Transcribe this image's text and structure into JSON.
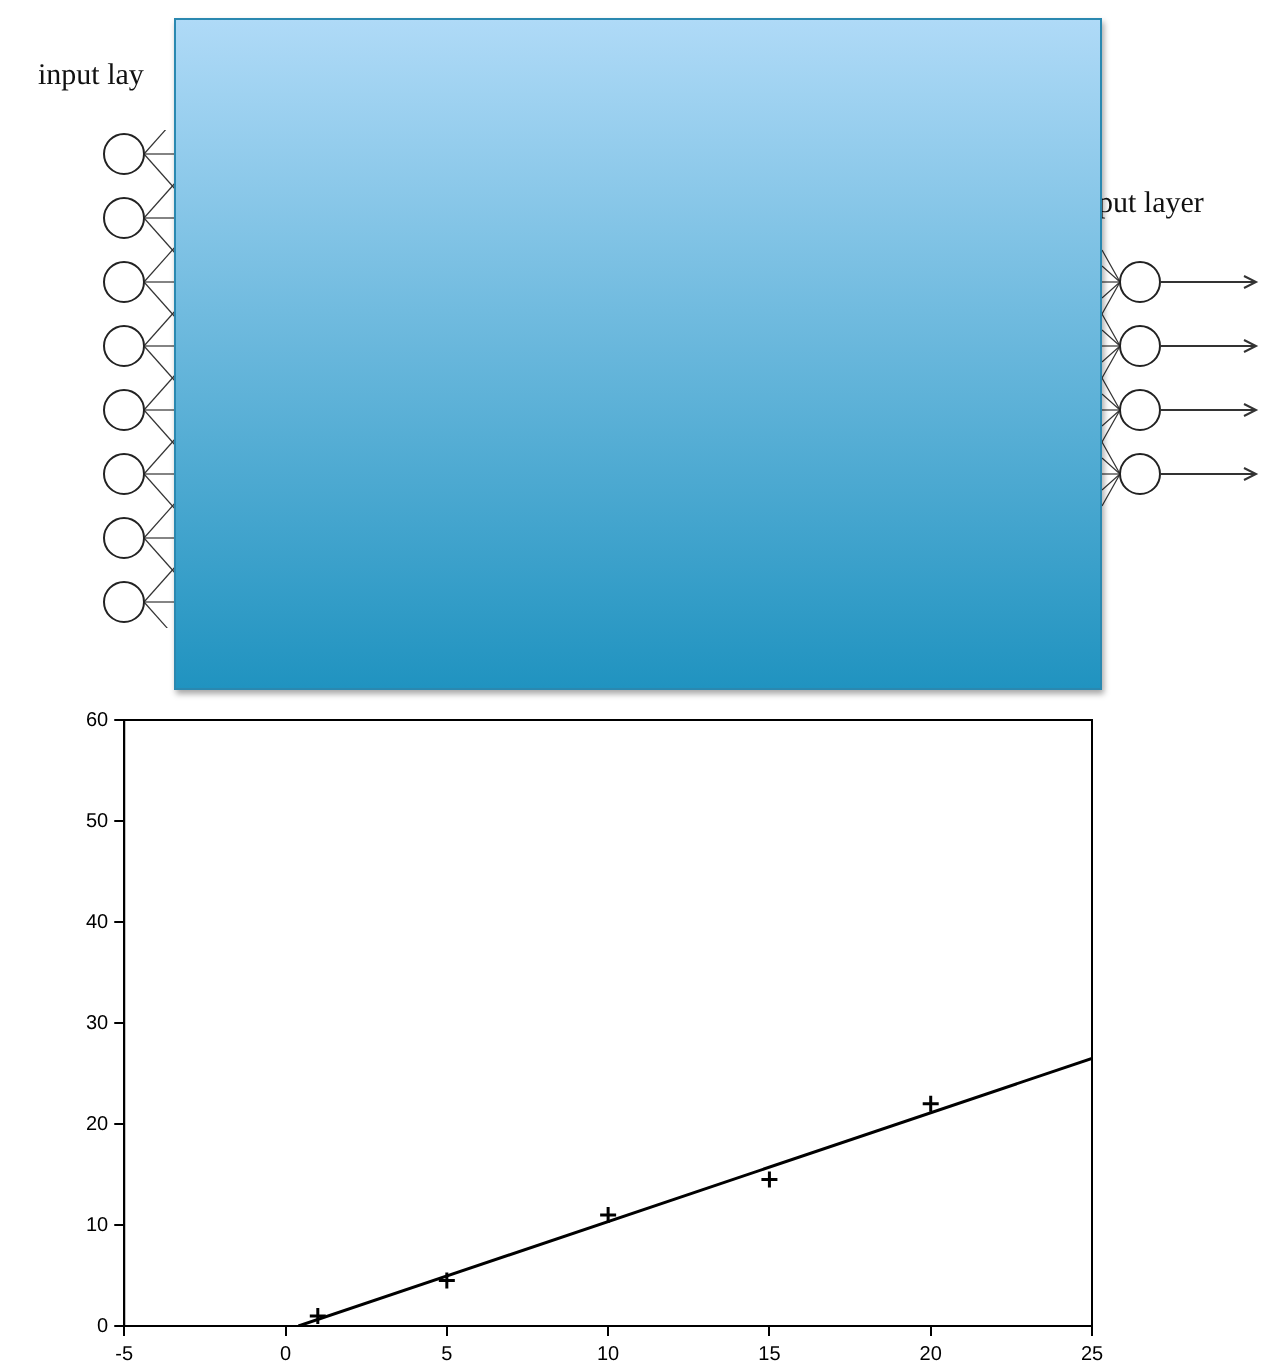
{
  "chart_data": {
    "type": "scatter",
    "series": [
      {
        "color": "#000000",
        "marker": "cross",
        "x": [
          1,
          5,
          10,
          15,
          20
        ],
        "values": [
          1,
          4.5,
          11,
          14.5,
          22
        ]
      },
      {
        "type": "line",
        "color": "#000000",
        "marker": "none",
        "line_style": "solid",
        "x": [
          0.4,
          25
        ],
        "values": [
          0,
          26.5
        ]
      }
    ],
    "xlim": [
      -5,
      25
    ],
    "xticks": [
      -5,
      0,
      5,
      10,
      15,
      20,
      25
    ],
    "ylim": [
      0,
      60
    ],
    "yticks": [
      0,
      10,
      20,
      30,
      40,
      50,
      60
    ],
    "grid": false,
    "legend": false,
    "annotations": [
      "input lay",
      "put layer"
    ]
  }
}
